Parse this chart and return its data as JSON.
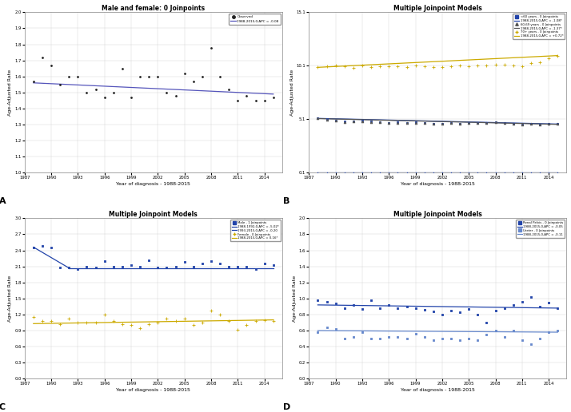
{
  "panel_A": {
    "title": "Male and female: 0 Joinpoints",
    "xlabel": "Year of diagnosis - 1988-2015",
    "ylabel": "Age-Adjusted Rate",
    "ylim": [
      1.0,
      2.0
    ],
    "yticks": [
      1.0,
      1.1,
      1.2,
      1.3,
      1.4,
      1.5,
      1.6,
      1.7,
      1.8,
      1.9,
      2.0
    ],
    "xlim": [
      1987,
      2016
    ],
    "xticks": [
      1987,
      1990,
      1993,
      1996,
      1999,
      2002,
      2005,
      2008,
      2011,
      2014
    ],
    "obs_x": [
      1988,
      1989,
      1990,
      1991,
      1992,
      1993,
      1994,
      1995,
      1996,
      1997,
      1998,
      1999,
      2000,
      2001,
      2002,
      2003,
      2004,
      2005,
      2006,
      2007,
      2008,
      2009,
      2010,
      2011,
      2012,
      2013,
      2014,
      2015
    ],
    "obs_y": [
      1.57,
      1.72,
      1.67,
      1.55,
      1.6,
      1.6,
      1.5,
      1.52,
      1.47,
      1.5,
      1.65,
      1.47,
      1.6,
      1.6,
      1.6,
      1.5,
      1.48,
      1.62,
      1.57,
      1.6,
      1.78,
      1.6,
      1.52,
      1.45,
      1.48,
      1.45,
      1.45,
      1.47
    ],
    "trend_x": [
      1988,
      2015
    ],
    "trend_y": [
      1.56,
      1.49
    ],
    "trend_color": "#5555bb",
    "obs_color": "#222222",
    "legend_obs": "Observed",
    "legend_trend": "1988-2015,0,APC = -0.08"
  },
  "panel_B": {
    "title": "Multiple Joinpoint Models",
    "xlabel": "Year of diagnosis - 1988-2015",
    "ylabel": "Age-Adjusted Rate",
    "ylim": [
      0.1,
      15.1
    ],
    "yticks": [
      0.1,
      5.1,
      10.1,
      15.1
    ],
    "xlim": [
      1987,
      2016
    ],
    "xticks": [
      1987,
      1990,
      1993,
      1996,
      1999,
      2002,
      2005,
      2008,
      2011,
      2014
    ],
    "series": [
      {
        "label_point": "<60 years - 0 Joinpoints",
        "label_trend": "1988-2015,0,APC = -1.08*",
        "color": "#2244aa",
        "marker": "s",
        "markersize": 2.5,
        "obs_x": [
          1988,
          1989,
          1990,
          1991,
          1992,
          1993,
          1994,
          1995,
          1996,
          1997,
          1998,
          1999,
          2000,
          2001,
          2002,
          2003,
          2004,
          2005,
          2006,
          2007,
          2008,
          2009,
          2010,
          2011,
          2012,
          2013,
          2014,
          2015
        ],
        "obs_y": [
          5.2,
          5.12,
          5.0,
          4.92,
          4.88,
          4.95,
          4.88,
          4.82,
          4.78,
          4.85,
          4.72,
          4.8,
          4.75,
          4.7,
          4.65,
          4.72,
          4.7,
          4.75,
          4.78,
          4.72,
          4.82,
          4.78,
          4.7,
          4.62,
          4.68,
          4.62,
          4.65,
          4.68
        ],
        "trend_x": [
          1988,
          2015
        ],
        "trend_y": [
          5.18,
          4.65
        ]
      },
      {
        "label_point": "60-69 years - 0 Joinpoints",
        "label_trend": "1988-2015,0,APC = -1.37*",
        "color": "#555555",
        "marker": "^",
        "markersize": 2.5,
        "obs_x": [
          1988,
          1989,
          1990,
          1991,
          1992,
          1993,
          1994,
          1995,
          1996,
          1997,
          1998,
          1999,
          2000,
          2001,
          2002,
          2003,
          2004,
          2005,
          2006,
          2007,
          2008,
          2009,
          2010,
          2011,
          2012,
          2013,
          2014,
          2015
        ],
        "obs_y": [
          5.18,
          5.08,
          4.98,
          4.85,
          4.88,
          4.92,
          4.82,
          4.8,
          4.78,
          4.76,
          4.72,
          4.78,
          4.72,
          4.7,
          4.68,
          4.72,
          4.7,
          4.76,
          4.78,
          4.74,
          4.84,
          4.78,
          4.7,
          4.62,
          4.68,
          4.62,
          4.64,
          4.66
        ],
        "trend_x": [
          1988,
          2015
        ],
        "trend_y": [
          5.16,
          4.62
        ]
      },
      {
        "label_point": "70+ years - 0 Joinpoints",
        "label_trend": "1988-2015,0,APC = +0.72*",
        "color": "#ccaa00",
        "marker": "+",
        "markersize": 3.5,
        "obs_x": [
          1988,
          1989,
          1990,
          1991,
          1992,
          1993,
          1994,
          1995,
          1996,
          1997,
          1998,
          1999,
          2000,
          2001,
          2002,
          2003,
          2004,
          2005,
          2006,
          2007,
          2008,
          2009,
          2010,
          2011,
          2012,
          2013,
          2014,
          2015
        ],
        "obs_y": [
          9.98,
          10.02,
          10.12,
          10.06,
          9.88,
          10.1,
          10.0,
          10.02,
          10.06,
          10.02,
          10.0,
          10.1,
          10.02,
          9.96,
          9.98,
          10.06,
          10.12,
          10.06,
          10.1,
          10.12,
          10.22,
          10.18,
          10.14,
          10.08,
          10.32,
          10.42,
          10.82,
          11.02
        ],
        "trend_x": [
          1988,
          2015
        ],
        "trend_y": [
          9.95,
          11.05
        ]
      },
      {
        "label_point": "bottom_line",
        "label_trend": "",
        "color": "#2244aa",
        "marker": ".",
        "markersize": 1,
        "obs_x": [
          1988,
          1989,
          1990,
          1991,
          1992,
          1993,
          1994,
          1995,
          1996,
          1997,
          1998,
          1999,
          2000,
          2001,
          2002,
          2003,
          2004,
          2005,
          2006,
          2007,
          2008,
          2009,
          2010,
          2011,
          2012,
          2013,
          2014,
          2015
        ],
        "obs_y": [
          0.1,
          0.1,
          0.1,
          0.1,
          0.1,
          0.1,
          0.1,
          0.1,
          0.1,
          0.1,
          0.1,
          0.1,
          0.1,
          0.1,
          0.1,
          0.1,
          0.1,
          0.1,
          0.1,
          0.1,
          0.1,
          0.1,
          0.1,
          0.1,
          0.1,
          0.1,
          0.1,
          0.1
        ],
        "trend_x": [
          1988,
          2015
        ],
        "trend_y": [
          0.1,
          0.1
        ]
      }
    ]
  },
  "panel_C": {
    "title": "Multiple Joinpoint Models",
    "xlabel": "Year of diagnosis - 1988-2015",
    "ylabel": "Age-Adjusted Rate",
    "ylim": [
      0.0,
      3.0
    ],
    "yticks": [
      0.0,
      0.3,
      0.6,
      0.9,
      1.2,
      1.5,
      1.8,
      2.1,
      2.4,
      2.7,
      3.0
    ],
    "xlim": [
      1987,
      2016
    ],
    "xticks": [
      1987,
      1990,
      1993,
      1996,
      1999,
      2002,
      2005,
      2008,
      2011,
      2014
    ],
    "series": [
      {
        "label_point": "Male - 1 Joinpoints",
        "label_trend1": "1988-1992,0,APC = -5.02*",
        "label_trend2": "1993-2015,0,APC = -0.20",
        "color": "#2244aa",
        "marker": "s",
        "markersize": 2.5,
        "obs_x": [
          1988,
          1989,
          1990,
          1991,
          1992,
          1993,
          1994,
          1995,
          1996,
          1997,
          1998,
          1999,
          2000,
          2001,
          2002,
          2003,
          2004,
          2005,
          2006,
          2007,
          2008,
          2009,
          2010,
          2011,
          2012,
          2013,
          2014,
          2015
        ],
        "obs_y": [
          2.45,
          2.48,
          2.45,
          2.08,
          2.08,
          2.05,
          2.1,
          2.08,
          2.2,
          2.1,
          2.1,
          2.12,
          2.1,
          2.22,
          2.08,
          2.08,
          2.1,
          2.18,
          2.1,
          2.15,
          2.2,
          2.15,
          2.1,
          2.1,
          2.1,
          2.05,
          2.15,
          2.12
        ],
        "joinpoint": 1992,
        "trend1_x": [
          1988,
          1992
        ],
        "trend1_y": [
          2.46,
          2.07
        ],
        "trend2_x": [
          1992,
          2015
        ],
        "trend2_y": [
          2.07,
          2.07
        ]
      },
      {
        "label_point": "Female - 0 Joinpoints",
        "label_trend": "1988-2015,0,APC = 0.16*",
        "color": "#ccaa00",
        "marker": "+",
        "markersize": 3.5,
        "obs_x": [
          1988,
          1989,
          1990,
          1991,
          1992,
          1993,
          1994,
          1995,
          1996,
          1997,
          1998,
          1999,
          2000,
          2001,
          2002,
          2003,
          2004,
          2005,
          2006,
          2007,
          2008,
          2009,
          2010,
          2011,
          2012,
          2013,
          2014,
          2015
        ],
        "obs_y": [
          1.15,
          1.08,
          1.08,
          1.02,
          1.12,
          1.05,
          1.05,
          1.05,
          1.2,
          1.08,
          1.02,
          1.0,
          0.95,
          1.02,
          1.05,
          1.12,
          1.08,
          1.12,
          1.0,
          1.05,
          1.28,
          1.2,
          1.08,
          0.92,
          1.0,
          1.08,
          1.1,
          1.08
        ],
        "trend_x": [
          1988,
          2015
        ],
        "trend_y": [
          1.03,
          1.1
        ]
      }
    ]
  },
  "panel_D": {
    "title": "Multiple Joinpoint Models",
    "xlabel": "Year of diagnosis - 1988-2015",
    "ylabel": "Age-Adjusted Rate",
    "ylim": [
      0.0,
      2.0
    ],
    "yticks": [
      0.0,
      0.2,
      0.4,
      0.6,
      0.8,
      1.0,
      1.2,
      1.4,
      1.6,
      1.8,
      2.0
    ],
    "xlim": [
      1987,
      2016
    ],
    "xticks": [
      1987,
      1990,
      1993,
      1996,
      1999,
      2002,
      2005,
      2008,
      2011,
      2014
    ],
    "series": [
      {
        "label_point": "Renal Pelvis - 0 Joinpoints",
        "label_trend": "1988-2015,0,APC = -0.05",
        "color": "#2244aa",
        "marker": "s",
        "markersize": 2.5,
        "obs_x": [
          1988,
          1989,
          1990,
          1991,
          1992,
          1993,
          1994,
          1995,
          1996,
          1997,
          1998,
          1999,
          2000,
          2001,
          2002,
          2003,
          2004,
          2005,
          2006,
          2007,
          2008,
          2009,
          2010,
          2011,
          2012,
          2013,
          2014,
          2015
        ],
        "obs_y": [
          0.98,
          0.96,
          0.94,
          0.88,
          0.92,
          0.87,
          0.98,
          0.88,
          0.92,
          0.88,
          0.9,
          0.88,
          0.86,
          0.84,
          0.8,
          0.85,
          0.83,
          0.87,
          0.8,
          0.7,
          0.85,
          0.88,
          0.92,
          0.96,
          1.02,
          0.9,
          0.95,
          0.88
        ],
        "trend_x": [
          1988,
          2015
        ],
        "trend_y": [
          0.92,
          0.88
        ]
      },
      {
        "label_point": "Ureter - 0 Joinpoints",
        "label_trend": "1988-2015,0,APC = -0.11",
        "color": "#6688cc",
        "marker": "s",
        "markersize": 2.5,
        "obs_x": [
          1988,
          1989,
          1990,
          1991,
          1992,
          1993,
          1994,
          1995,
          1996,
          1997,
          1998,
          1999,
          2000,
          2001,
          2002,
          2003,
          2004,
          2005,
          2006,
          2007,
          2008,
          2009,
          2010,
          2011,
          2012,
          2013,
          2014,
          2015
        ],
        "obs_y": [
          0.58,
          0.64,
          0.62,
          0.5,
          0.52,
          0.58,
          0.5,
          0.5,
          0.52,
          0.52,
          0.5,
          0.56,
          0.52,
          0.48,
          0.5,
          0.5,
          0.48,
          0.5,
          0.48,
          0.55,
          0.6,
          0.52,
          0.6,
          0.48,
          0.43,
          0.5,
          0.58,
          0.6
        ],
        "trend_x": [
          1988,
          2015
        ],
        "trend_y": [
          0.6,
          0.58
        ]
      }
    ]
  },
  "label_A": "A",
  "label_B": "B",
  "label_C": "C",
  "label_D": "D",
  "bg_color": "#ffffff",
  "grid_color": "#cccccc",
  "spine_color": "#888888"
}
